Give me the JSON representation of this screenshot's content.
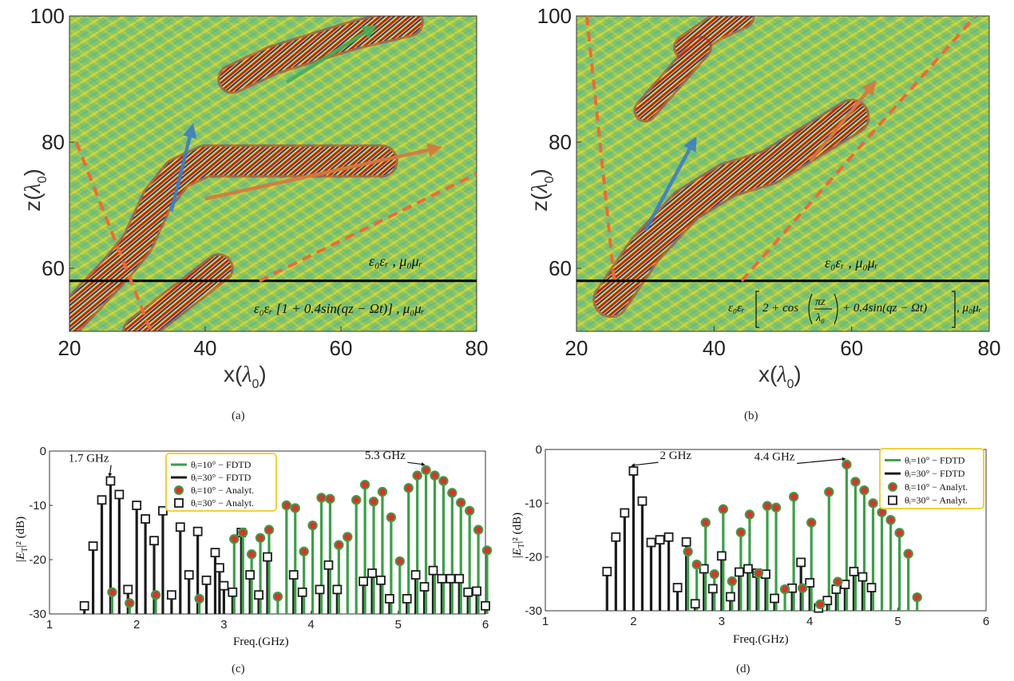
{
  "colors": {
    "field_bg": "#8ec45a",
    "field_cyan": "#35b7c9",
    "field_yellow": "#f2e12a",
    "field_red": "#b3262c",
    "field_navy": "#2b3a8c",
    "boundary": "#ee6a36",
    "fdtd_green": "#3aa047",
    "fdtd_black": "#1c1c1c",
    "marker_red": "#d8352a",
    "legend_border": "#f0d23a"
  },
  "chart_data": [
    {
      "id": "a",
      "type": "heatmap",
      "caption": "(a)",
      "xlabel_base": "x(",
      "xlabel_sym": "λ",
      "xlabel_sub": "0",
      "xlabel_end": ")",
      "ylabel_base": "z(",
      "ylabel_sym": "λ",
      "ylabel_sub": "0",
      "ylabel_end": ")",
      "xlim": [
        20,
        80
      ],
      "ylim": [
        50,
        100
      ],
      "xticks": [
        "20",
        "40",
        "60",
        "80"
      ],
      "yticks": [
        "60",
        "80",
        "100"
      ],
      "interface_z": 58,
      "label_upper": "ε₀εᵣ , μ₀μᵣ",
      "label_lower": "ε₀εᵣ [1 + 0.4sin(qz − Ωt)] , μ₀μᵣ",
      "boundaries": [
        [
          [
            21,
            80
          ],
          [
            32,
            50
          ]
        ],
        [
          [
            48,
            58
          ],
          [
            80,
            75
          ]
        ]
      ],
      "arrows": [
        {
          "from": [
            35,
            69
          ],
          "to": [
            38,
            82
          ],
          "color": "#3a7fc8"
        },
        {
          "from": [
            40,
            71
          ],
          "to": [
            74,
            79
          ],
          "color": "#d9773d"
        },
        {
          "from": [
            52,
            89.5
          ],
          "to": [
            64.5,
            98
          ],
          "color": "#43b057"
        }
      ],
      "bands": [
        {
          "path": [
            [
              20,
              52
            ],
            [
              27,
              60
            ],
            [
              30,
              64
            ],
            [
              33,
              71
            ],
            [
              36,
              75
            ],
            [
              40,
              77
            ],
            [
              48,
              77
            ],
            [
              56,
              77
            ],
            [
              66,
              77
            ]
          ],
          "width": 4.5
        },
        {
          "path": [
            [
              44,
              90
            ],
            [
              50,
              93
            ],
            [
              56,
              95
            ],
            [
              62,
              97
            ],
            [
              70,
              99
            ]
          ],
          "width": 4
        },
        {
          "path": [
            [
              30,
              50
            ],
            [
              36,
              55
            ],
            [
              42,
              60
            ]
          ],
          "width": 4
        }
      ]
    },
    {
      "id": "b",
      "type": "heatmap",
      "caption": "(b)",
      "xlabel_base": "x(",
      "xlabel_sym": "λ",
      "xlabel_sub": "0",
      "xlabel_end": ")",
      "ylabel_base": "z(",
      "ylabel_sym": "λ",
      "ylabel_sub": "0",
      "ylabel_end": ")",
      "xlim": [
        20,
        80
      ],
      "ylim": [
        50,
        100
      ],
      "xticks": [
        "20",
        "40",
        "60",
        "80"
      ],
      "yticks": [
        "60",
        "80",
        "100"
      ],
      "interface_z": 58,
      "label_upper": "ε₀εᵣ , μ₀μᵣ",
      "label_lower_pre": "ε₀εᵣ",
      "label_lower_2": "2 + cos",
      "label_lower_frac_num": "πz",
      "label_lower_frac_den": "λ₀",
      "label_lower_tail": "+ 0.4sin(qz − Ωt)",
      "label_lower_end": ", μ₀μᵣ",
      "boundaries": [
        [
          [
            21.5,
            100
          ],
          [
            25.5,
            58
          ]
        ],
        [
          [
            44,
            58
          ],
          [
            78,
            100
          ]
        ]
      ],
      "arrows": [
        {
          "from": [
            30,
            66
          ],
          "to": [
            37,
            80
          ],
          "color": "#3a7fc8"
        },
        {
          "from": [
            54,
            77
          ],
          "to": [
            63,
            89
          ],
          "color": "#d9773d"
        }
      ],
      "bands": [
        {
          "path": [
            [
              25,
              55
            ],
            [
              30,
              63
            ],
            [
              36,
              70
            ],
            [
              42,
              74
            ],
            [
              48,
              76
            ],
            [
              54,
              80
            ],
            [
              60,
              84
            ]
          ],
          "width": 5
        },
        {
          "path": [
            [
              36,
              95
            ],
            [
              40,
              98
            ],
            [
              44,
              100
            ]
          ],
          "width": 3.5
        },
        {
          "path": [
            [
              30,
              85
            ],
            [
              34,
              90
            ],
            [
              38,
              95
            ]
          ],
          "width": 3
        }
      ]
    },
    {
      "id": "c",
      "type": "bar",
      "caption": "(c)",
      "xlabel": "Freq.(GHz)",
      "ylabel_pre": "|E",
      "ylabel_sub": "T",
      "ylabel_post": "|² (dB)",
      "xlim": [
        1,
        6
      ],
      "ylim": [
        -30,
        0
      ],
      "xticks": [
        "1",
        "2",
        "3",
        "4",
        "5",
        "6"
      ],
      "yticks": [
        "0",
        "-10",
        "-20",
        "-30"
      ],
      "annotations": [
        {
          "text": "1.7 GHz",
          "x": 1.7,
          "y": -5.5,
          "tx": 1.45,
          "ty": -2
        },
        {
          "text": "5.3 GHz",
          "x": 5.3,
          "y": -3.5,
          "tx": 4.85,
          "ty": -1.5
        }
      ],
      "legend": [
        {
          "label": "θᵢ=10° − FDTD",
          "kind": "line",
          "color": "#3aa047"
        },
        {
          "label": "θᵢ=30° − FDTD",
          "kind": "line",
          "color": "#1c1c1c"
        },
        {
          "label": "θᵢ=10° − Analyt.",
          "kind": "circle",
          "color": "#d8352a"
        },
        {
          "label": "θᵢ=30° − Analyt.",
          "kind": "square",
          "color": "#1c1c1c"
        }
      ],
      "series": [
        {
          "name": "θᵢ=30° − FDTD",
          "x": [
            1.4,
            1.5,
            1.6,
            1.7,
            1.8,
            1.9,
            2.0,
            2.1,
            2.2,
            2.3,
            2.4,
            2.5,
            2.6,
            2.7,
            2.8,
            2.9,
            2.95,
            3.0,
            3.1,
            3.2,
            3.3,
            3.4,
            3.5,
            3.8,
            3.9,
            4.1,
            4.2,
            4.3,
            4.6,
            4.7,
            4.8,
            4.9,
            5.1,
            5.2,
            5.3,
            5.4,
            5.5,
            5.6,
            5.7,
            5.8,
            5.9,
            6.0
          ],
          "y": [
            -28.5,
            -17.5,
            -9,
            -5.5,
            -8,
            -25.5,
            -10,
            -12.5,
            -16.5,
            -11,
            -26.5,
            -14,
            -22.8,
            -14.8,
            -23.8,
            -18.7,
            -21.5,
            -24.8,
            -26,
            -15,
            -22.8,
            -26.5,
            -19.5,
            -22.8,
            -26,
            -25.5,
            -21,
            -25.5,
            -24,
            -22.5,
            -23.8,
            -27.2,
            -27.2,
            -22.8,
            -25,
            -22,
            -23.5,
            -23.5,
            -23.5,
            -26,
            -25.8,
            -28.5
          ]
        },
        {
          "name": "θᵢ=10° − FDTD",
          "x": [
            1.7,
            1.9,
            2.2,
            2.7,
            3.1,
            3.2,
            3.3,
            3.4,
            3.5,
            3.6,
            3.7,
            3.8,
            3.9,
            4.0,
            4.1,
            4.2,
            4.3,
            4.4,
            4.5,
            4.6,
            4.7,
            4.8,
            4.9,
            5.0,
            5.1,
            5.2,
            5.3,
            5.4,
            5.5,
            5.6,
            5.7,
            5.8,
            5.9,
            6.0
          ],
          "y": [
            -26,
            -28,
            -26.5,
            -27.2,
            -16.2,
            -15,
            -19,
            -16,
            -14.5,
            -26.8,
            -10,
            -10.5,
            -18.5,
            -13.7,
            -8.6,
            -8.8,
            -17.3,
            -15.8,
            -9,
            -6.2,
            -9.3,
            -7.5,
            -12.2,
            -20.3,
            -6.8,
            -4.5,
            -3.5,
            -4.5,
            -5.5,
            -7.7,
            -9.5,
            -11,
            -14.5,
            -18.3
          ]
        }
      ]
    },
    {
      "id": "d",
      "type": "bar",
      "caption": "(d)",
      "xlabel": "Freq.(GHz)",
      "ylabel_pre": "|E",
      "ylabel_sub": "T",
      "ylabel_post": "|² (dB)",
      "xlim": [
        1,
        6
      ],
      "ylim": [
        -30,
        0
      ],
      "xticks": [
        "1",
        "2",
        "3",
        "4",
        "5",
        "6"
      ],
      "yticks": [
        "0",
        "-10",
        "-20",
        "-30"
      ],
      "annotations": [
        {
          "text": "2 GHz",
          "x": 2.0,
          "y": -4,
          "tx": 2.3,
          "ty": -1.8
        },
        {
          "text": "4.4 GHz",
          "x": 4.4,
          "y": -2.8,
          "tx": 3.6,
          "ty": -2
        }
      ],
      "legend": [
        {
          "label": "θᵢ=10° − FDTD",
          "kind": "line",
          "color": "#3aa047"
        },
        {
          "label": "θᵢ=30° − FDTD",
          "kind": "line",
          "color": "#1c1c1c"
        },
        {
          "label": "θᵢ=10° − Analyt.",
          "kind": "circle",
          "color": "#d8352a"
        },
        {
          "label": "θᵢ=30° − Analyt.",
          "kind": "square",
          "color": "#1c1c1c"
        }
      ],
      "series": [
        {
          "name": "θᵢ=30° − FDTD",
          "x": [
            1.7,
            1.8,
            1.9,
            2.0,
            2.1,
            2.2,
            2.3,
            2.4,
            2.5,
            2.6,
            2.7,
            2.8,
            2.9,
            3.0,
            3.1,
            3.2,
            3.3,
            3.4,
            3.5,
            3.6,
            3.8,
            3.9,
            4.0,
            4.1,
            4.2,
            4.3,
            4.4,
            4.5,
            4.6,
            4.7
          ],
          "y": [
            -22.7,
            -16.3,
            -11.8,
            -4,
            -9.6,
            -17.3,
            -16.8,
            -16.3,
            -25.7,
            -17.2,
            -28.7,
            -22.2,
            -25.9,
            -19.8,
            -27.4,
            -22.8,
            -22.2,
            -23,
            -23.2,
            -27.7,
            -25.8,
            -21,
            -24.8,
            -29.5,
            -28.1,
            -26,
            -25.1,
            -22.7,
            -23.7,
            -25.7
          ]
        },
        {
          "name": "θᵢ=10° − FDTD",
          "x": [
            2.6,
            2.7,
            2.8,
            2.9,
            3.0,
            3.1,
            3.2,
            3.3,
            3.4,
            3.5,
            3.6,
            3.7,
            3.8,
            3.9,
            4.0,
            4.1,
            4.2,
            4.3,
            4.4,
            4.5,
            4.6,
            4.7,
            4.8,
            4.9,
            5.0,
            5.1,
            5.2
          ],
          "y": [
            -19,
            -21.4,
            -13.6,
            -23.2,
            -11.1,
            -24.5,
            -15.4,
            -12.1,
            -23,
            -10.5,
            -10.8,
            -26,
            -8.8,
            -25.8,
            -13.6,
            -28.8,
            -7.9,
            -24.6,
            -2.8,
            -6,
            -7.6,
            -10,
            -11.7,
            -13.1,
            -15.5,
            -19.4,
            -27.5
          ]
        }
      ]
    }
  ]
}
